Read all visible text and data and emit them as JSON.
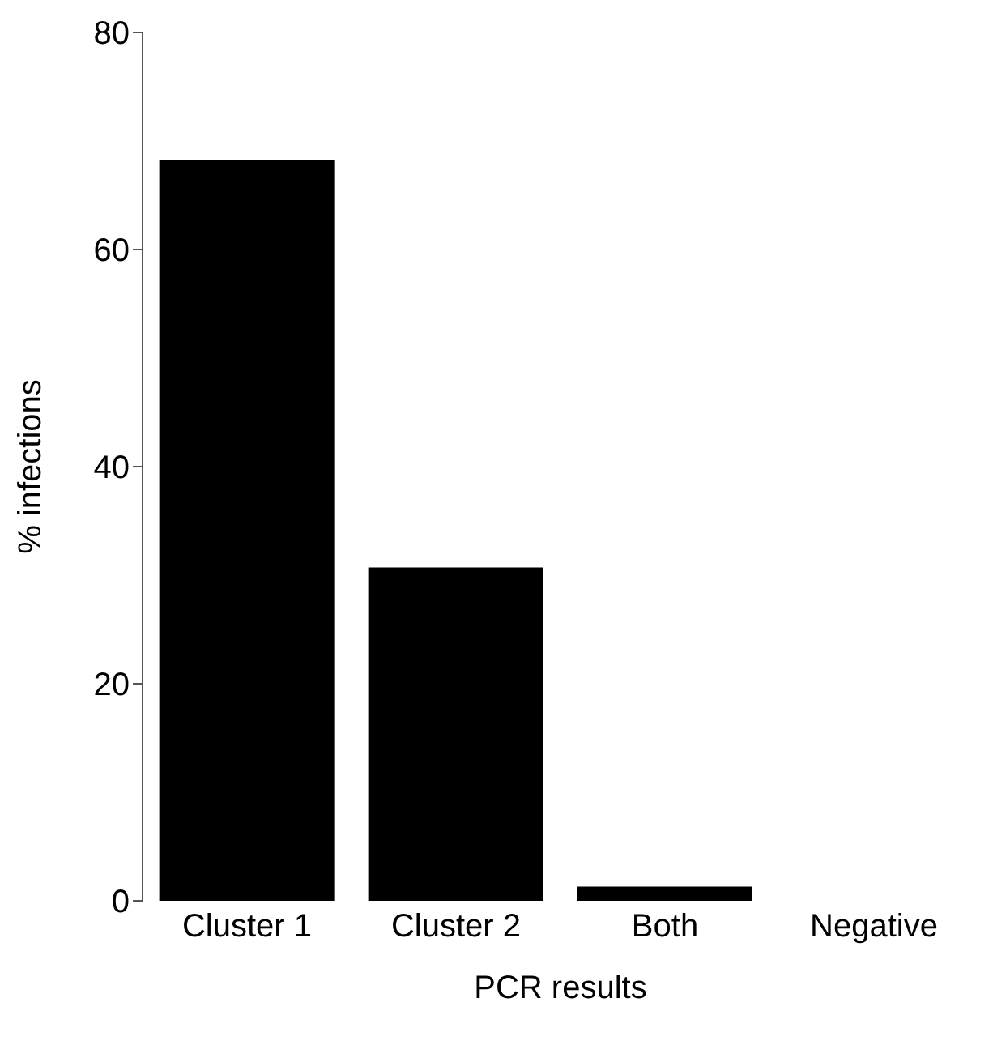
{
  "chart_data": {
    "type": "bar",
    "xlabel": "PCR results",
    "ylabel": "% infections",
    "categories": [
      "Cluster 1",
      "Cluster 2",
      "Both",
      "Negative"
    ],
    "values": [
      68.2,
      30.7,
      1.3,
      0
    ],
    "color": "#000000",
    "ylim": [
      0,
      80
    ],
    "yticks": [
      0,
      20,
      40,
      60,
      80
    ],
    "grid": false,
    "legend": false
  }
}
